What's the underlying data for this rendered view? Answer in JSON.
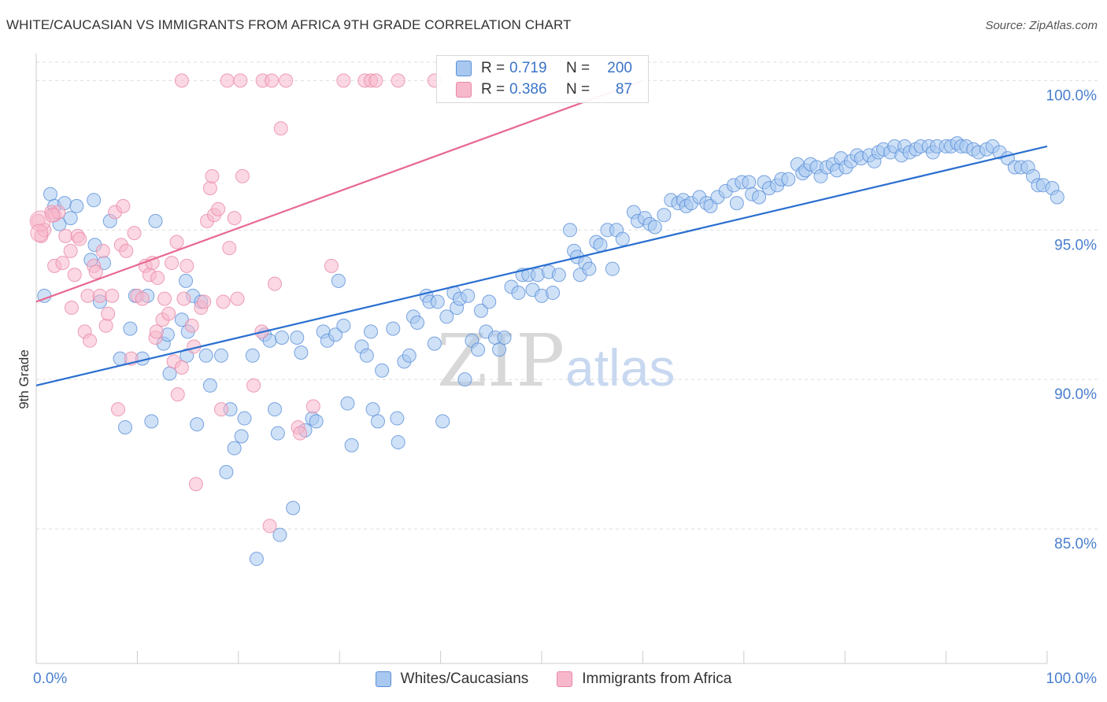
{
  "header": {
    "title": "WHITE/CAUCASIAN VS IMMIGRANTS FROM AFRICA 9TH GRADE CORRELATION CHART",
    "source": "Source: ZipAtlas.com"
  },
  "watermark": {
    "zip": "ZIP",
    "atlas": "atlas"
  },
  "colors": {
    "blue_fill": "#a8c8f0",
    "blue_stroke": "#5a8fd8",
    "blue_line": "#2a6fd0",
    "pink_fill": "#f8b8cc",
    "pink_stroke": "#e888a8",
    "pink_line": "#e86890",
    "axis_text": "#4a7fd0"
  },
  "legend": {
    "rows": [
      {
        "r_label": "R =",
        "r_value": "0.719",
        "n_label": "N =",
        "n_value": "200"
      },
      {
        "r_label": "R =",
        "r_value": "0.386",
        "n_label": "N =",
        "n_value": "87"
      }
    ]
  },
  "bottom_legend": {
    "series1": "Whites/Caucasians",
    "series2": "Immigrants from Africa"
  },
  "x_ticks": {
    "left": "0.0%",
    "right": "100.0%"
  },
  "chart_data": {
    "type": "scatter",
    "title": "WHITE/CAUCASIAN VS IMMIGRANTS FROM AFRICA 9TH GRADE CORRELATION CHART",
    "xlabel": "",
    "ylabel": "9th Grade",
    "xlim": [
      0,
      100
    ],
    "ylim": [
      80.5,
      100.8
    ],
    "y_ticks": [
      {
        "value": 85,
        "label": "85.0%"
      },
      {
        "value": 90,
        "label": "90.0%"
      },
      {
        "value": 95,
        "label": "95.0%"
      },
      {
        "value": 100,
        "label": "100.0%"
      }
    ],
    "grid": "horizontal dashed",
    "legend_position": "top-center",
    "series": [
      {
        "name": "Whites/Caucasians",
        "R": 0.719,
        "N": 200,
        "trend": [
          [
            0,
            89.8
          ],
          [
            100,
            97.8
          ]
        ],
        "points": [
          [
            0.8,
            92.8
          ],
          [
            1.4,
            96.2
          ],
          [
            1.8,
            95.8
          ],
          [
            2.3,
            95.2
          ],
          [
            2.8,
            95.9
          ],
          [
            3.4,
            95.4
          ],
          [
            4,
            95.8
          ],
          [
            5.4,
            94
          ],
          [
            5.8,
            94.5
          ],
          [
            5.7,
            96
          ],
          [
            6.3,
            92.6
          ],
          [
            6.7,
            93.9
          ],
          [
            7.3,
            95.3
          ],
          [
            8.3,
            90.7
          ],
          [
            8.8,
            88.4
          ],
          [
            9.3,
            91.7
          ],
          [
            9.8,
            92.8
          ],
          [
            10.5,
            90.7
          ],
          [
            11,
            92.8
          ],
          [
            11.4,
            88.6
          ],
          [
            11.8,
            95.3
          ],
          [
            12.6,
            91.2
          ],
          [
            13,
            91.5
          ],
          [
            13.2,
            90.2
          ],
          [
            14.4,
            92
          ],
          [
            14.8,
            93.3
          ],
          [
            14.9,
            90.8
          ],
          [
            15,
            91.6
          ],
          [
            15.5,
            92.8
          ],
          [
            15.9,
            88.5
          ],
          [
            16.3,
            92.6
          ],
          [
            16.8,
            90.8
          ],
          [
            17.2,
            89.8
          ],
          [
            18.3,
            90.8
          ],
          [
            18.8,
            86.9
          ],
          [
            19.2,
            89
          ],
          [
            19.6,
            87.7
          ],
          [
            20.3,
            88.1
          ],
          [
            20.6,
            88.7
          ],
          [
            21.4,
            90.8
          ],
          [
            21.8,
            84
          ],
          [
            22.6,
            91.5
          ],
          [
            23.1,
            91.3
          ],
          [
            23.6,
            89
          ],
          [
            23.9,
            88.2
          ],
          [
            24.1,
            84.8
          ],
          [
            24.3,
            91.4
          ],
          [
            25.4,
            85.7
          ],
          [
            25.8,
            91.4
          ],
          [
            26.2,
            90.9
          ],
          [
            26.6,
            88.3
          ],
          [
            27.3,
            88.7
          ],
          [
            27.7,
            88.6
          ],
          [
            28.4,
            91.6
          ],
          [
            28.8,
            91.3
          ],
          [
            29.6,
            91.5
          ],
          [
            29.9,
            93.3
          ],
          [
            30.4,
            91.8
          ],
          [
            30.8,
            89.2
          ],
          [
            31.2,
            87.8
          ],
          [
            32.2,
            91.1
          ],
          [
            32.7,
            90.8
          ],
          [
            33.1,
            91.6
          ],
          [
            33.3,
            89
          ],
          [
            33.8,
            88.6
          ],
          [
            34.2,
            90.3
          ],
          [
            35.3,
            91.7
          ],
          [
            35.7,
            88.7
          ],
          [
            35.8,
            87.9
          ],
          [
            36.4,
            90.6
          ],
          [
            36.9,
            90.8
          ],
          [
            37.3,
            92.1
          ],
          [
            37.7,
            91.9
          ],
          [
            38.6,
            92.8
          ],
          [
            38.9,
            92.6
          ],
          [
            39.4,
            91.2
          ],
          [
            39.7,
            92.6
          ],
          [
            40.2,
            88.6
          ],
          [
            40.6,
            92.1
          ],
          [
            41.3,
            92.9
          ],
          [
            41.6,
            92.4
          ],
          [
            41.9,
            92.7
          ],
          [
            42.4,
            90
          ],
          [
            42.7,
            92.8
          ],
          [
            43.1,
            91.3
          ],
          [
            43.7,
            91
          ],
          [
            44,
            92.3
          ],
          [
            44.5,
            91.6
          ],
          [
            44.8,
            92.6
          ],
          [
            45.4,
            91.4
          ],
          [
            45.8,
            91
          ],
          [
            46.3,
            91.4
          ],
          [
            47,
            93.1
          ],
          [
            47.7,
            92.9
          ],
          [
            48.1,
            93.5
          ],
          [
            48.7,
            93.5
          ],
          [
            49.1,
            93
          ],
          [
            49.6,
            93.5
          ],
          [
            50,
            92.8
          ],
          [
            50.7,
            93.6
          ],
          [
            51.1,
            92.9
          ],
          [
            51.7,
            93.5
          ],
          [
            52.8,
            95
          ],
          [
            53.2,
            94.3
          ],
          [
            53.5,
            94.1
          ],
          [
            53.8,
            93.5
          ],
          [
            54.3,
            93.9
          ],
          [
            54.7,
            93.7
          ],
          [
            55.4,
            94.6
          ],
          [
            55.8,
            94.5
          ],
          [
            56.5,
            95
          ],
          [
            57,
            93.7
          ],
          [
            57.4,
            95
          ],
          [
            58,
            94.7
          ],
          [
            59.1,
            95.6
          ],
          [
            59.5,
            95.3
          ],
          [
            60.2,
            95.4
          ],
          [
            60.7,
            95.2
          ],
          [
            61.2,
            95.1
          ],
          [
            62.1,
            95.5
          ],
          [
            62.8,
            96
          ],
          [
            63.5,
            95.9
          ],
          [
            64,
            96
          ],
          [
            64.3,
            95.8
          ],
          [
            64.8,
            95.9
          ],
          [
            65.6,
            96.1
          ],
          [
            66.3,
            95.9
          ],
          [
            66.7,
            95.8
          ],
          [
            67.4,
            96.1
          ],
          [
            68.2,
            96.3
          ],
          [
            69,
            96.5
          ],
          [
            69.3,
            95.9
          ],
          [
            69.8,
            96.6
          ],
          [
            70.5,
            96.6
          ],
          [
            70.8,
            96.2
          ],
          [
            71.5,
            96.1
          ],
          [
            72,
            96.6
          ],
          [
            72.5,
            96.4
          ],
          [
            73.3,
            96.5
          ],
          [
            73.7,
            96.7
          ],
          [
            74.4,
            96.7
          ],
          [
            75.3,
            97.2
          ],
          [
            75.8,
            96.9
          ],
          [
            76.1,
            97
          ],
          [
            76.6,
            97.2
          ],
          [
            77.2,
            97.1
          ],
          [
            77.6,
            96.8
          ],
          [
            78.2,
            97.1
          ],
          [
            78.8,
            97.2
          ],
          [
            79.2,
            97
          ],
          [
            79.6,
            97.4
          ],
          [
            80.1,
            97.1
          ],
          [
            80.6,
            97.3
          ],
          [
            81.2,
            97.5
          ],
          [
            81.6,
            97.4
          ],
          [
            82.4,
            97.5
          ],
          [
            82.9,
            97.3
          ],
          [
            83.3,
            97.6
          ],
          [
            83.8,
            97.7
          ],
          [
            84.5,
            97.6
          ],
          [
            84.9,
            97.8
          ],
          [
            85.6,
            97.5
          ],
          [
            85.9,
            97.8
          ],
          [
            86.4,
            97.6
          ],
          [
            87,
            97.7
          ],
          [
            87.5,
            97.8
          ],
          [
            88.3,
            97.8
          ],
          [
            88.7,
            97.6
          ],
          [
            89.1,
            97.8
          ],
          [
            90,
            97.8
          ],
          [
            90.5,
            97.8
          ],
          [
            91.1,
            97.9
          ],
          [
            91.5,
            97.8
          ],
          [
            92,
            97.8
          ],
          [
            92.7,
            97.7
          ],
          [
            93.2,
            97.6
          ],
          [
            94,
            97.7
          ],
          [
            94.6,
            97.8
          ],
          [
            95.3,
            97.6
          ],
          [
            96.1,
            97.4
          ],
          [
            96.8,
            97.1
          ],
          [
            97.4,
            97.1
          ],
          [
            98.1,
            97.1
          ],
          [
            98.6,
            96.8
          ],
          [
            99.1,
            96.5
          ],
          [
            99.6,
            96.5
          ],
          [
            100.5,
            96.4
          ],
          [
            101,
            96.1
          ]
        ]
      },
      {
        "name": "Immigrants from Africa",
        "R": 0.386,
        "N": 87,
        "trend": [
          [
            0,
            92.6
          ],
          [
            60,
            100
          ]
        ],
        "points": [
          [
            0.2,
            95.3
          ],
          [
            0.5,
            94.8
          ],
          [
            0.8,
            95
          ],
          [
            1.5,
            95.6
          ],
          [
            1.8,
            95.5
          ],
          [
            1.8,
            93.8
          ],
          [
            2.2,
            95.6
          ],
          [
            2.6,
            93.9
          ],
          [
            2.9,
            94.8
          ],
          [
            3.4,
            94.3
          ],
          [
            3.5,
            92.4
          ],
          [
            3.8,
            93.5
          ],
          [
            4.1,
            94.8
          ],
          [
            4.3,
            94.7
          ],
          [
            4.8,
            91.6
          ],
          [
            5.1,
            92.8
          ],
          [
            5.3,
            91.3
          ],
          [
            5.7,
            93.8
          ],
          [
            5.9,
            93.6
          ],
          [
            6.3,
            92.8
          ],
          [
            6.6,
            94.3
          ],
          [
            6.9,
            91.8
          ],
          [
            7.1,
            92.2
          ],
          [
            7.5,
            92.8
          ],
          [
            7.8,
            95.6
          ],
          [
            8.1,
            89
          ],
          [
            8.4,
            94.5
          ],
          [
            8.6,
            95.8
          ],
          [
            8.9,
            94.3
          ],
          [
            9.4,
            90.7
          ],
          [
            9.7,
            94.9
          ],
          [
            10,
            92.8
          ],
          [
            10.5,
            92.7
          ],
          [
            10.8,
            93.8
          ],
          [
            11.2,
            93.5
          ],
          [
            11.5,
            93.9
          ],
          [
            11.8,
            91.4
          ],
          [
            11.9,
            91.6
          ],
          [
            12,
            93.4
          ],
          [
            12.5,
            92
          ],
          [
            12.7,
            92.7
          ],
          [
            13.1,
            92.2
          ],
          [
            13.4,
            93.9
          ],
          [
            13.6,
            90.6
          ],
          [
            13.9,
            94.6
          ],
          [
            14,
            89.5
          ],
          [
            14.4,
            90.4
          ],
          [
            14.6,
            92.7
          ],
          [
            14.9,
            93.8
          ],
          [
            15.4,
            91.8
          ],
          [
            15.6,
            91.1
          ],
          [
            15.8,
            86.5
          ],
          [
            16.3,
            92.4
          ],
          [
            16.6,
            92.6
          ],
          [
            16.9,
            95.3
          ],
          [
            17.2,
            96.4
          ],
          [
            17.4,
            96.8
          ],
          [
            17.6,
            95.5
          ],
          [
            18,
            95.7
          ],
          [
            18.3,
            89
          ],
          [
            18.5,
            92.6
          ],
          [
            19.1,
            94.4
          ],
          [
            19.6,
            95.4
          ],
          [
            19.9,
            92.7
          ],
          [
            20.4,
            96.8
          ],
          [
            21.5,
            89.8
          ],
          [
            22.3,
            91.6
          ],
          [
            23.1,
            85.1
          ],
          [
            23.6,
            93.2
          ],
          [
            24.2,
            98.4
          ],
          [
            25.9,
            88.4
          ],
          [
            26.1,
            88.2
          ],
          [
            27.4,
            89.1
          ],
          [
            29.2,
            93.8
          ],
          [
            14.4,
            100
          ],
          [
            18.9,
            100
          ],
          [
            20.2,
            100
          ],
          [
            22.4,
            100
          ],
          [
            23.3,
            100
          ],
          [
            24.7,
            100
          ],
          [
            30.4,
            100
          ],
          [
            32.5,
            100
          ],
          [
            33.1,
            100
          ],
          [
            33.6,
            100
          ],
          [
            35.8,
            100
          ],
          [
            39.4,
            100
          ]
        ]
      }
    ]
  }
}
